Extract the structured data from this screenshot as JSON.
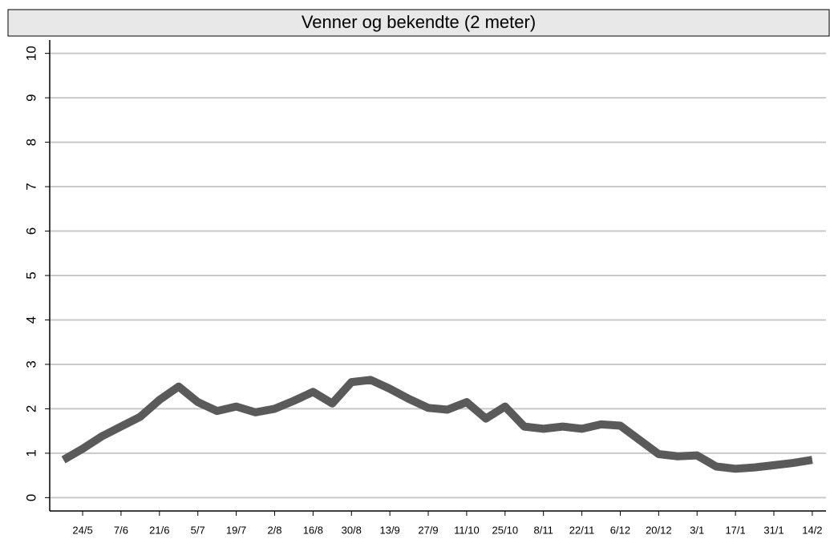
{
  "chart_data": {
    "type": "line",
    "title": "Venner og bekendte (2 meter)",
    "x": [
      -7,
      0,
      7,
      14,
      21,
      28,
      35,
      42,
      49,
      56,
      63,
      70,
      77,
      84,
      91,
      98,
      105,
      112,
      119,
      126,
      133,
      140,
      147,
      154,
      161,
      168,
      175,
      182,
      189,
      196,
      203,
      210,
      217,
      224,
      231,
      238,
      245,
      252,
      259,
      266
    ],
    "values": [
      0.85,
      1.1,
      1.38,
      1.6,
      1.82,
      2.2,
      2.5,
      2.15,
      1.95,
      2.05,
      1.92,
      2.0,
      2.18,
      2.38,
      2.12,
      2.6,
      2.65,
      2.45,
      2.22,
      2.02,
      1.98,
      2.15,
      1.78,
      2.05,
      1.6,
      1.55,
      1.6,
      1.55,
      1.65,
      1.62,
      1.3,
      0.98,
      0.93,
      0.95,
      0.7,
      0.65,
      0.68,
      0.73,
      0.78,
      0.85
    ],
    "color": "#5a5a5a",
    "xlim": [
      -12,
      271
    ],
    "xticks": [
      {
        "value": 0,
        "label": "24/5"
      },
      {
        "value": 14,
        "label": "7/6"
      },
      {
        "value": 28,
        "label": "21/6"
      },
      {
        "value": 42,
        "label": "5/7"
      },
      {
        "value": 56,
        "label": "19/7"
      },
      {
        "value": 70,
        "label": "2/8"
      },
      {
        "value": 84,
        "label": "16/8"
      },
      {
        "value": 98,
        "label": "30/8"
      },
      {
        "value": 112,
        "label": "13/9"
      },
      {
        "value": 126,
        "label": "27/9"
      },
      {
        "value": 140,
        "label": "11/10"
      },
      {
        "value": 154,
        "label": "25/10"
      },
      {
        "value": 168,
        "label": "8/11"
      },
      {
        "value": 182,
        "label": "22/11"
      },
      {
        "value": 196,
        "label": "6/12"
      },
      {
        "value": 210,
        "label": "20/12"
      },
      {
        "value": 224,
        "label": "3/1"
      },
      {
        "value": 238,
        "label": "17/1"
      },
      {
        "value": 252,
        "label": "31/1"
      },
      {
        "value": 266,
        "label": "14/2"
      }
    ],
    "ylim": [
      -0.3,
      10.3
    ],
    "yticks": [
      0,
      1,
      2,
      3,
      4,
      5,
      6,
      7,
      8,
      9,
      10
    ],
    "grid": true
  }
}
